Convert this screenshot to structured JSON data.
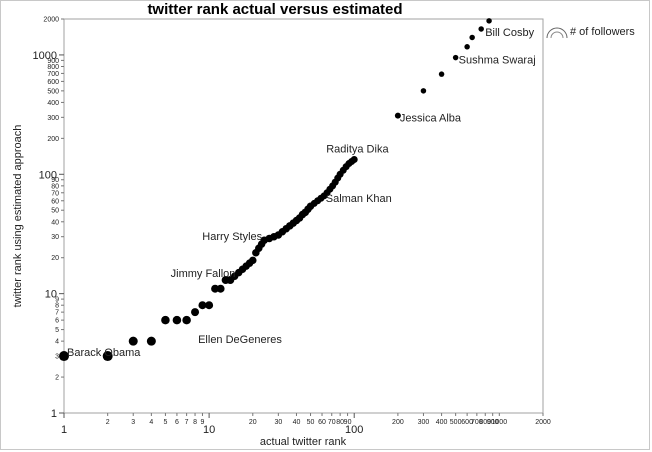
{
  "chart_data": {
    "type": "scatter",
    "title": "twitter rank actual versus estimated",
    "xlabel": "actual twitter rank",
    "ylabel": "twitter rank using estimated approach",
    "x_scale": "log",
    "y_scale": "log",
    "xlim": [
      1,
      2000
    ],
    "ylim": [
      1,
      2000
    ],
    "x_ticks_major": [
      1,
      10,
      100
    ],
    "x_ticks_minor": [
      2,
      3,
      4,
      5,
      6,
      7,
      8,
      9,
      20,
      30,
      40,
      50,
      60,
      70,
      80,
      90,
      200,
      300,
      400,
      500,
      600,
      700,
      800,
      900,
      1000,
      2000
    ],
    "y_ticks_major": [
      1,
      10,
      100,
      1000
    ],
    "y_ticks_minor": [
      2,
      3,
      4,
      5,
      6,
      7,
      8,
      9,
      20,
      30,
      40,
      50,
      60,
      70,
      80,
      90,
      200,
      300,
      400,
      500,
      600,
      700,
      800,
      900,
      2000
    ],
    "grid": false,
    "legend": {
      "label": "# of followers",
      "position": "right"
    },
    "annotations": [
      {
        "text": "Barack Obama",
        "x": 1,
        "y": 3
      },
      {
        "text": "Ellen DeGeneres",
        "x": 10,
        "y": 6
      },
      {
        "text": "Jimmy Fallon",
        "x": 13,
        "y": 13
      },
      {
        "text": "Harry Styles",
        "x": 24,
        "y": 27
      },
      {
        "text": "Salman Khan",
        "x": 70,
        "y": 70
      },
      {
        "text": "Raditya Dika",
        "x": 100,
        "y": 130
      },
      {
        "text": "Jessica Alba",
        "x": 200,
        "y": 310
      },
      {
        "text": "Sushma Swaraj",
        "x": 500,
        "y": 950
      },
      {
        "text": "Bill Cosby",
        "x": 750,
        "y": 1650
      }
    ],
    "series": [
      {
        "points": [
          {
            "x": 1,
            "y": 3,
            "size": 9
          },
          {
            "x": 2,
            "y": 3,
            "size": 9
          },
          {
            "x": 3,
            "y": 4,
            "size": 8
          },
          {
            "x": 4,
            "y": 4,
            "size": 8
          },
          {
            "x": 5,
            "y": 6,
            "size": 7.5
          },
          {
            "x": 6,
            "y": 6,
            "size": 7.5
          },
          {
            "x": 7,
            "y": 6,
            "size": 7.5
          },
          {
            "x": 8,
            "y": 7,
            "size": 7
          },
          {
            "x": 9,
            "y": 8,
            "size": 7
          },
          {
            "x": 10,
            "y": 8,
            "size": 7
          },
          {
            "x": 11,
            "y": 11,
            "size": 7
          },
          {
            "x": 12,
            "y": 11,
            "size": 7
          },
          {
            "x": 13,
            "y": 13,
            "size": 7
          },
          {
            "x": 14,
            "y": 13,
            "size": 7
          },
          {
            "x": 15,
            "y": 14,
            "size": 6.5
          },
          {
            "x": 16,
            "y": 15,
            "size": 6.5
          },
          {
            "x": 17,
            "y": 16,
            "size": 6.5
          },
          {
            "x": 18,
            "y": 17,
            "size": 6.5
          },
          {
            "x": 19,
            "y": 18,
            "size": 6.5
          },
          {
            "x": 20,
            "y": 19,
            "size": 6.5
          },
          {
            "x": 21,
            "y": 22,
            "size": 6.5
          },
          {
            "x": 22,
            "y": 24,
            "size": 6.5
          },
          {
            "x": 23,
            "y": 26,
            "size": 6.5
          },
          {
            "x": 24,
            "y": 28,
            "size": 6.5
          },
          {
            "x": 26,
            "y": 29,
            "size": 6.5
          },
          {
            "x": 28,
            "y": 30,
            "size": 6.5
          },
          {
            "x": 30,
            "y": 31,
            "size": 6.5
          },
          {
            "x": 32,
            "y": 33,
            "size": 6.5
          },
          {
            "x": 34,
            "y": 35,
            "size": 6.5
          },
          {
            "x": 36,
            "y": 37,
            "size": 6.5
          },
          {
            "x": 38,
            "y": 39,
            "size": 6.5
          },
          {
            "x": 40,
            "y": 41,
            "size": 6.5
          },
          {
            "x": 42,
            "y": 43,
            "size": 6.5
          },
          {
            "x": 44,
            "y": 46,
            "size": 6.5
          },
          {
            "x": 46,
            "y": 48,
            "size": 6.5
          },
          {
            "x": 48,
            "y": 51,
            "size": 6.5
          },
          {
            "x": 50,
            "y": 54,
            "size": 6.5
          },
          {
            "x": 53,
            "y": 57,
            "size": 6
          },
          {
            "x": 56,
            "y": 60,
            "size": 6
          },
          {
            "x": 59,
            "y": 63,
            "size": 6
          },
          {
            "x": 62,
            "y": 66,
            "size": 6
          },
          {
            "x": 65,
            "y": 70,
            "size": 6
          },
          {
            "x": 68,
            "y": 75,
            "size": 6
          },
          {
            "x": 71,
            "y": 80,
            "size": 6
          },
          {
            "x": 74,
            "y": 86,
            "size": 6
          },
          {
            "x": 77,
            "y": 93,
            "size": 6
          },
          {
            "x": 80,
            "y": 100,
            "size": 6
          },
          {
            "x": 84,
            "y": 108,
            "size": 6
          },
          {
            "x": 88,
            "y": 116,
            "size": 6
          },
          {
            "x": 92,
            "y": 123,
            "size": 6
          },
          {
            "x": 96,
            "y": 128,
            "size": 6
          },
          {
            "x": 100,
            "y": 133,
            "size": 6
          },
          {
            "x": 200,
            "y": 310,
            "size": 5
          },
          {
            "x": 300,
            "y": 500,
            "size": 4.5
          },
          {
            "x": 400,
            "y": 690,
            "size": 4.5
          },
          {
            "x": 500,
            "y": 950,
            "size": 4.5
          },
          {
            "x": 600,
            "y": 1170,
            "size": 4.5
          },
          {
            "x": 650,
            "y": 1400,
            "size": 4.5
          },
          {
            "x": 750,
            "y": 1650,
            "size": 4.5
          },
          {
            "x": 850,
            "y": 1930,
            "size": 4.5
          }
        ]
      }
    ]
  }
}
